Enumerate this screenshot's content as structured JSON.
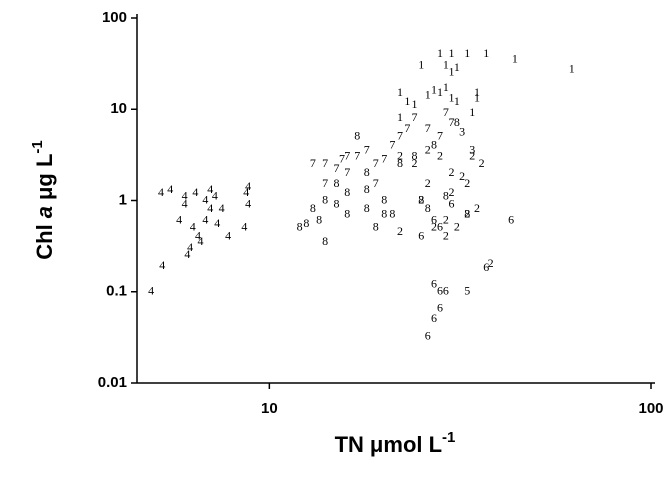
{
  "chart_data": {
    "type": "scatter",
    "xlabel": [
      "TN",
      "μmol L",
      "-1"
    ],
    "ylabel": [
      "Chl",
      "a",
      "μg L",
      "-1"
    ],
    "xscale": "log",
    "yscale": "log",
    "xlim": [
      4.5,
      100
    ],
    "ylim": [
      0.01,
      100
    ],
    "xticks": [
      10,
      100
    ],
    "yticks": [
      0.01,
      0.1,
      1,
      10,
      100
    ],
    "series": [
      {
        "name": "4",
        "color": "#000000",
        "x": [
          4.9,
          5.24,
          5.2,
          5.5,
          6.0,
          6.0,
          5.8,
          6.3,
          6.5,
          6.2,
          6.6,
          7.0,
          7.2,
          7.5,
          6.8,
          7.8,
          8.7,
          8.8,
          8.6,
          8.8,
          7.0,
          6.1,
          6.4,
          6.8,
          7.3
        ],
        "y": [
          0.1,
          0.19,
          1.2,
          1.3,
          1.1,
          0.9,
          0.6,
          0.5,
          0.4,
          0.3,
          0.35,
          0.8,
          1.1,
          0.8,
          0.6,
          0.4,
          1.2,
          0.9,
          0.5,
          1.4,
          1.3,
          0.25,
          1.2,
          1.0,
          0.55
        ]
      },
      {
        "name": "8",
        "color": "#000000",
        "x": [
          12,
          12.5,
          13,
          13.5,
          14,
          15,
          15,
          16,
          16,
          17,
          18,
          18,
          19,
          20,
          21,
          22,
          24,
          25,
          26,
          27,
          29,
          31,
          33,
          18,
          20,
          14
        ],
        "y": [
          0.5,
          0.55,
          0.8,
          0.6,
          0.35,
          1.5,
          0.9,
          1.2,
          0.7,
          5,
          2,
          0.8,
          0.5,
          1.0,
          0.7,
          2.5,
          3,
          1.0,
          0.8,
          4,
          1.1,
          7,
          0.7,
          1.3,
          0.7,
          1.0
        ]
      },
      {
        "name": "7",
        "color": "#000000",
        "x": [
          13,
          14,
          14,
          15,
          15.5,
          16,
          17,
          18,
          19,
          20,
          21,
          22,
          23,
          24,
          26,
          28,
          29,
          30,
          19,
          16
        ],
        "y": [
          2.5,
          2.5,
          1.5,
          2.2,
          2.8,
          2.0,
          3,
          3.5,
          2.5,
          2.8,
          4,
          5,
          6,
          8,
          6,
          5,
          9,
          7,
          1.5,
          3
        ]
      },
      {
        "name": "1",
        "color": "#000000",
        "x": [
          25,
          28,
          30,
          33,
          37,
          44,
          62,
          22,
          23,
          26,
          27,
          28,
          29,
          30,
          31,
          35,
          35,
          29,
          30,
          34,
          22,
          24,
          31
        ],
        "y": [
          30,
          40,
          40,
          40,
          40,
          35,
          27,
          15,
          12,
          14,
          16,
          15,
          17,
          13,
          12,
          13,
          15,
          30,
          25,
          9,
          8,
          11,
          28
        ]
      },
      {
        "name": "2",
        "color": "#000000",
        "x": [
          22,
          24,
          26,
          28,
          30,
          32,
          34,
          36,
          25,
          27,
          29,
          31,
          33,
          35,
          38,
          26,
          30,
          33,
          22,
          29
        ],
        "y": [
          3,
          2.5,
          3.5,
          3,
          2,
          1.8,
          3,
          2.5,
          1,
          0.5,
          0.6,
          0.5,
          0.7,
          0.8,
          0.2,
          1.5,
          1.2,
          1.5,
          0.45,
          0.4
        ]
      },
      {
        "name": "3",
        "color": "#000000",
        "x": [
          32,
          34
        ],
        "y": [
          5.5,
          3.5
        ]
      },
      {
        "name": "5",
        "color": "#000000",
        "x": [
          33
        ],
        "y": [
          0.1
        ]
      },
      {
        "name": "6",
        "color": "#000000",
        "x": [
          25,
          27,
          28,
          27,
          28,
          29,
          27,
          28,
          26,
          37,
          43,
          30
        ],
        "y": [
          0.4,
          0.6,
          0.5,
          0.12,
          0.1,
          0.1,
          0.05,
          0.065,
          0.032,
          0.18,
          0.6,
          0.9
        ]
      }
    ]
  }
}
